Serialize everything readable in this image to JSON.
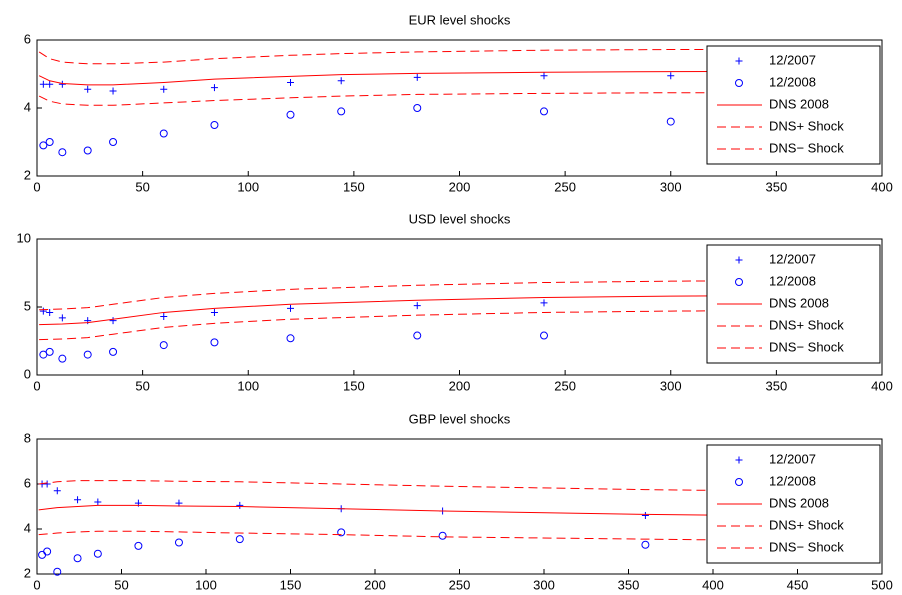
{
  "chart_data": [
    {
      "type": "line",
      "title": "EUR level shocks",
      "xlim": [
        0,
        400
      ],
      "xticks": [
        0,
        50,
        100,
        150,
        200,
        250,
        300,
        350,
        400
      ],
      "ylim": [
        2,
        6
      ],
      "yticks": [
        2,
        4,
        6
      ],
      "legend": "upper right",
      "series": [
        {
          "name": "12/2007",
          "color": "#0000ff",
          "style": "plus",
          "x": [
            3,
            6,
            12,
            24,
            36,
            60,
            84,
            120,
            144,
            180,
            240,
            300
          ],
          "values": [
            4.7,
            4.7,
            4.7,
            4.55,
            4.5,
            4.55,
            4.6,
            4.75,
            4.8,
            4.9,
            4.95,
            4.95
          ]
        },
        {
          "name": "12/2008",
          "color": "#0000ff",
          "style": "circle",
          "x": [
            3,
            6,
            12,
            24,
            36,
            60,
            84,
            120,
            144,
            180,
            240,
            300
          ],
          "values": [
            2.9,
            3.0,
            2.7,
            2.75,
            3.0,
            3.25,
            3.5,
            3.8,
            3.9,
            4.0,
            3.9,
            3.6
          ]
        },
        {
          "name": "DNS 2008",
          "color": "#ff0000",
          "style": "solid",
          "x": [
            1,
            6,
            12,
            24,
            36,
            60,
            84,
            120,
            144,
            180,
            240,
            300,
            360
          ],
          "values": [
            4.95,
            4.8,
            4.72,
            4.68,
            4.68,
            4.75,
            4.85,
            4.93,
            4.98,
            5.02,
            5.05,
            5.07,
            5.08
          ]
        },
        {
          "name": "DNS+ Shock",
          "color": "#ff0000",
          "style": "dashed",
          "x": [
            1,
            6,
            12,
            24,
            36,
            60,
            84,
            120,
            144,
            180,
            240,
            300,
            360
          ],
          "values": [
            5.65,
            5.45,
            5.35,
            5.3,
            5.3,
            5.35,
            5.45,
            5.55,
            5.6,
            5.65,
            5.7,
            5.72,
            5.72
          ]
        },
        {
          "name": "DNS− Shock",
          "color": "#ff0000",
          "style": "dashed",
          "x": [
            1,
            6,
            12,
            24,
            36,
            60,
            84,
            120,
            144,
            180,
            240,
            300,
            360
          ],
          "values": [
            4.35,
            4.2,
            4.12,
            4.08,
            4.08,
            4.15,
            4.22,
            4.3,
            4.35,
            4.4,
            4.43,
            4.45,
            4.45
          ]
        }
      ]
    },
    {
      "type": "line",
      "title": "USD level shocks",
      "xlim": [
        0,
        400
      ],
      "xticks": [
        0,
        50,
        100,
        150,
        200,
        250,
        300,
        350,
        400
      ],
      "ylim": [
        0,
        10
      ],
      "yticks": [
        0,
        5,
        10
      ],
      "legend": "upper right",
      "series": [
        {
          "name": "12/2007",
          "color": "#0000ff",
          "style": "plus",
          "x": [
            3,
            6,
            12,
            24,
            36,
            60,
            84,
            120,
            180,
            240
          ],
          "values": [
            4.7,
            4.6,
            4.2,
            4.0,
            4.0,
            4.3,
            4.6,
            4.9,
            5.1,
            5.3
          ]
        },
        {
          "name": "12/2008",
          "color": "#0000ff",
          "style": "circle",
          "x": [
            3,
            6,
            12,
            24,
            36,
            60,
            84,
            120,
            180,
            240
          ],
          "values": [
            1.5,
            1.7,
            1.2,
            1.5,
            1.7,
            2.2,
            2.4,
            2.7,
            2.9,
            2.9
          ]
        },
        {
          "name": "DNS 2008",
          "color": "#ff0000",
          "style": "solid",
          "x": [
            1,
            12,
            24,
            36,
            60,
            84,
            120,
            180,
            240,
            300,
            360
          ],
          "values": [
            3.7,
            3.75,
            3.85,
            4.1,
            4.6,
            4.9,
            5.2,
            5.5,
            5.7,
            5.8,
            5.85
          ]
        },
        {
          "name": "DNS+ Shock",
          "color": "#ff0000",
          "style": "dashed",
          "x": [
            1,
            12,
            24,
            36,
            60,
            84,
            120,
            180,
            240,
            300,
            360
          ],
          "values": [
            4.8,
            4.85,
            4.95,
            5.2,
            5.7,
            6.0,
            6.3,
            6.6,
            6.8,
            6.9,
            6.95
          ]
        },
        {
          "name": "DNS− Shock",
          "color": "#ff0000",
          "style": "dashed",
          "x": [
            1,
            12,
            24,
            36,
            60,
            84,
            120,
            180,
            240,
            300,
            360
          ],
          "values": [
            2.6,
            2.65,
            2.75,
            3.0,
            3.5,
            3.8,
            4.1,
            4.4,
            4.6,
            4.7,
            4.75
          ]
        }
      ]
    },
    {
      "type": "line",
      "title": "GBP level shocks",
      "xlim": [
        0,
        500
      ],
      "xticks": [
        0,
        50,
        100,
        150,
        200,
        250,
        300,
        350,
        400,
        450,
        500
      ],
      "ylim": [
        2,
        8
      ],
      "yticks": [
        2,
        4,
        6,
        8
      ],
      "legend": "upper right",
      "series": [
        {
          "name": "12/2007",
          "color": "#0000ff",
          "style": "plus",
          "x": [
            3,
            6,
            12,
            24,
            36,
            60,
            84,
            120,
            180,
            240,
            360
          ],
          "values": [
            6.0,
            6.0,
            5.7,
            5.3,
            5.2,
            5.15,
            5.15,
            5.05,
            4.9,
            4.8,
            4.6
          ]
        },
        {
          "name": "12/2008",
          "color": "#0000ff",
          "style": "circle",
          "x": [
            3,
            6,
            12,
            24,
            36,
            60,
            84,
            120,
            180,
            240,
            360
          ],
          "values": [
            2.85,
            3.0,
            2.1,
            2.7,
            2.9,
            3.25,
            3.4,
            3.55,
            3.85,
            3.7,
            3.3
          ]
        },
        {
          "name": "DNS 2008",
          "color": "#ff0000",
          "style": "solid",
          "x": [
            1,
            12,
            24,
            36,
            60,
            84,
            120,
            180,
            240,
            360,
            420
          ],
          "values": [
            4.85,
            4.95,
            5.0,
            5.05,
            5.05,
            5.02,
            5.0,
            4.9,
            4.8,
            4.65,
            4.6
          ]
        },
        {
          "name": "DNS+ Shock",
          "color": "#ff0000",
          "style": "dashed",
          "x": [
            1,
            12,
            24,
            36,
            60,
            84,
            120,
            180,
            240,
            360,
            420
          ],
          "values": [
            6.0,
            6.1,
            6.15,
            6.15,
            6.15,
            6.12,
            6.1,
            6.0,
            5.9,
            5.75,
            5.7
          ]
        },
        {
          "name": "DNS− Shock",
          "color": "#ff0000",
          "style": "dashed",
          "x": [
            1,
            12,
            24,
            36,
            60,
            84,
            120,
            180,
            240,
            360,
            420
          ],
          "values": [
            3.75,
            3.82,
            3.87,
            3.9,
            3.9,
            3.87,
            3.82,
            3.75,
            3.65,
            3.55,
            3.5
          ]
        }
      ]
    }
  ]
}
